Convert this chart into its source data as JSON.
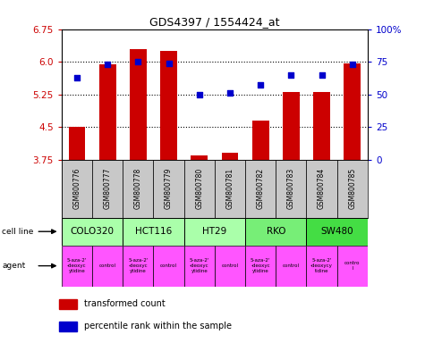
{
  "title": "GDS4397 / 1554424_at",
  "samples": [
    "GSM800776",
    "GSM800777",
    "GSM800778",
    "GSM800779",
    "GSM800780",
    "GSM800781",
    "GSM800782",
    "GSM800783",
    "GSM800784",
    "GSM800785"
  ],
  "bar_values": [
    4.5,
    5.95,
    6.3,
    6.25,
    3.85,
    3.9,
    4.65,
    5.3,
    5.3,
    5.97
  ],
  "dot_values": [
    63,
    73,
    75,
    74,
    50,
    51,
    57,
    65,
    65,
    73
  ],
  "ylim": [
    3.75,
    6.75
  ],
  "yticks_left": [
    3.75,
    4.5,
    5.25,
    6.0,
    6.75
  ],
  "yticks_right": [
    0,
    25,
    50,
    75,
    100
  ],
  "bar_color": "#cc0000",
  "dot_color": "#0000cc",
  "cell_lines": [
    {
      "name": "COLO320",
      "start": 0,
      "end": 2,
      "color": "#aaffaa"
    },
    {
      "name": "HCT116",
      "start": 2,
      "end": 4,
      "color": "#aaffaa"
    },
    {
      "name": "HT29",
      "start": 4,
      "end": 6,
      "color": "#aaffaa"
    },
    {
      "name": "RKO",
      "start": 6,
      "end": 8,
      "color": "#77ee77"
    },
    {
      "name": "SW480",
      "start": 8,
      "end": 10,
      "color": "#44dd44"
    }
  ],
  "agent_texts": [
    "5-aza-2'\n-deoxyc\nytidine",
    "control",
    "5-aza-2'\n-deoxyc\nytidine",
    "control",
    "5-aza-2'\n-deoxyc\nytidine",
    "control",
    "5-aza-2'\n-deoxyc\nytidine",
    "control",
    "5-aza-2'\n-deoxycy\ntidine",
    "contro\nl"
  ],
  "agent_color": "#ff55ff",
  "legend_bar_label": "transformed count",
  "legend_dot_label": "percentile rank within the sample",
  "cell_line_label": "cell line",
  "agent_label": "agent",
  "sample_bg": "#c8c8c8",
  "background_color": "#ffffff"
}
